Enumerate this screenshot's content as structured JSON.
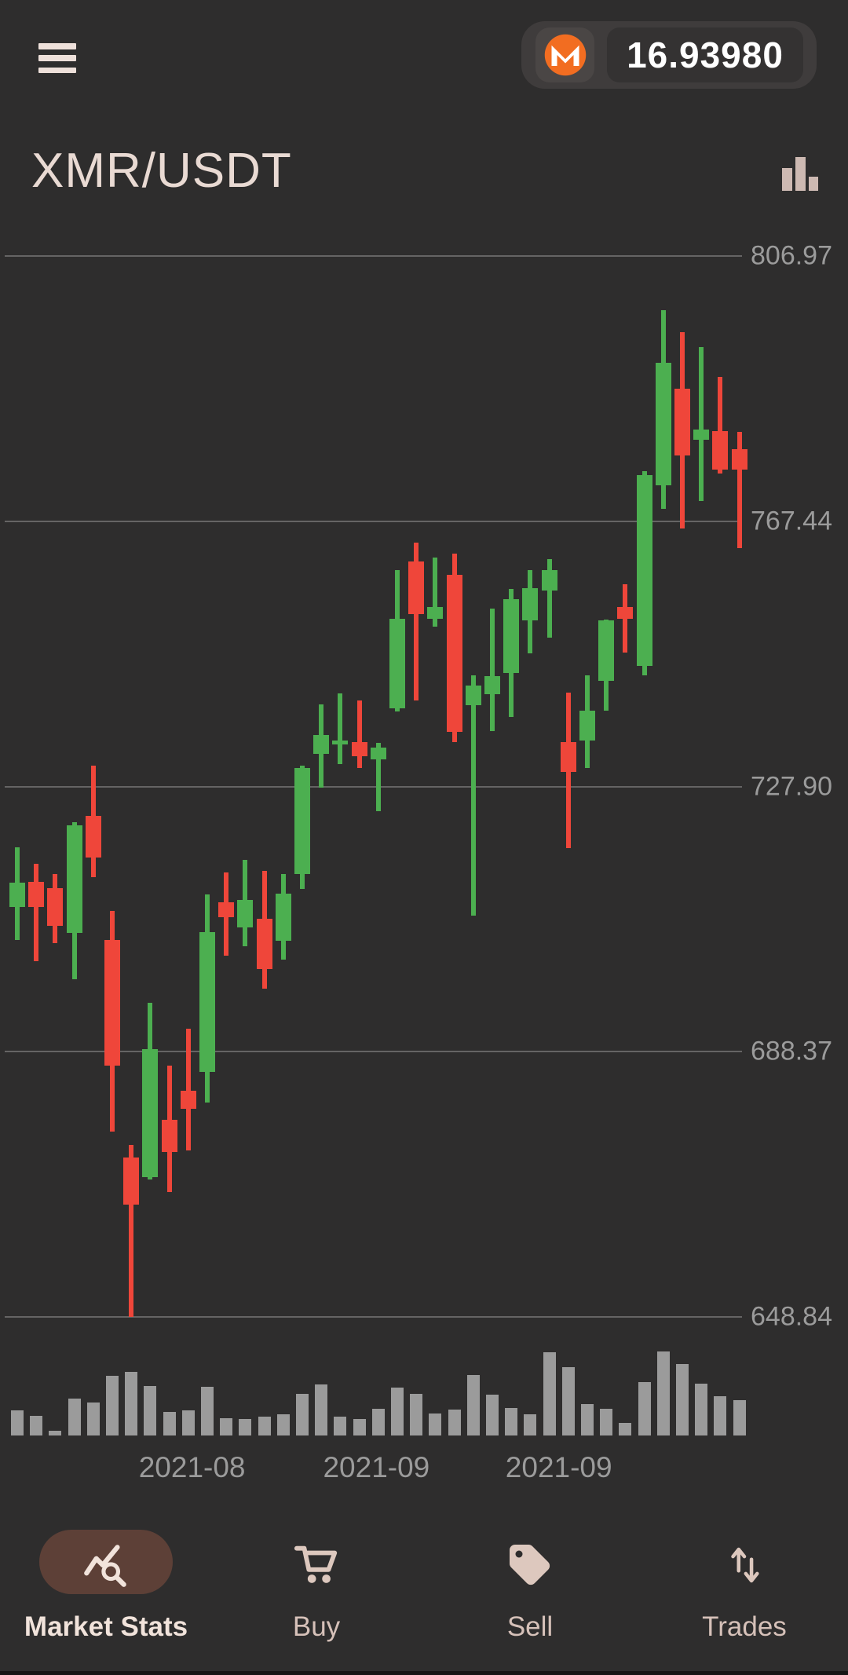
{
  "header": {
    "balance": "16.93980",
    "coin_icon": "monero",
    "monero_orange": "#f26d21"
  },
  "title": {
    "pair": "XMR/USDT"
  },
  "chart_data": {
    "type": "candlestick",
    "title": "XMR/USDT",
    "legend": "none",
    "grid": "horizontal",
    "colors": {
      "up": "#4caf50",
      "down": "#ef463a",
      "volume": "#9b9b9b",
      "grid": "#6f6e6e",
      "axis_text": "#9b9b9b"
    },
    "y_axis": {
      "side": "right",
      "labels": [
        "806.97",
        "767.44",
        "727.90",
        "688.37",
        "648.84"
      ],
      "range": [
        648.84,
        806.97
      ]
    },
    "x_axis": {
      "ticks": [
        {
          "label": "2021-08",
          "candle_index": 9.2
        },
        {
          "label": "2021-09",
          "candle_index": 18.9
        },
        {
          "label": "2021-09",
          "candle_index": 28.5
        }
      ]
    },
    "candles": [
      {
        "o": 709.9,
        "h": 718.8,
        "l": 705.0,
        "c": 713.6,
        "v": 0.3
      },
      {
        "o": 713.7,
        "h": 716.4,
        "l": 701.8,
        "c": 709.9,
        "v": 0.23
      },
      {
        "o": 712.8,
        "h": 714.9,
        "l": 704.5,
        "c": 707.1,
        "v": 0.06
      },
      {
        "o": 706.1,
        "h": 722.6,
        "l": 699.2,
        "c": 722.1,
        "v": 0.44
      },
      {
        "o": 723.5,
        "h": 731.0,
        "l": 714.4,
        "c": 717.3,
        "v": 0.39
      },
      {
        "o": 705.0,
        "h": 709.3,
        "l": 676.4,
        "c": 686.3,
        "v": 0.71
      },
      {
        "o": 672.6,
        "h": 674.5,
        "l": 648.8,
        "c": 665.6,
        "v": 0.76
      },
      {
        "o": 669.7,
        "h": 695.7,
        "l": 669.3,
        "c": 688.7,
        "v": 0.59
      },
      {
        "o": 678.2,
        "h": 686.3,
        "l": 667.5,
        "c": 673.4,
        "v": 0.28
      },
      {
        "o": 682.6,
        "h": 691.8,
        "l": 673.7,
        "c": 679.9,
        "v": 0.3
      },
      {
        "o": 685.3,
        "h": 711.8,
        "l": 680.8,
        "c": 706.2,
        "v": 0.58
      },
      {
        "o": 710.6,
        "h": 715.1,
        "l": 702.7,
        "c": 708.4,
        "v": 0.21
      },
      {
        "o": 706.9,
        "h": 716.9,
        "l": 704.1,
        "c": 711.0,
        "v": 0.2
      },
      {
        "o": 708.2,
        "h": 715.3,
        "l": 697.7,
        "c": 700.7,
        "v": 0.22
      },
      {
        "o": 704.9,
        "h": 714.8,
        "l": 702.1,
        "c": 711.9,
        "v": 0.25
      },
      {
        "o": 714.8,
        "h": 731.0,
        "l": 712.6,
        "c": 730.7,
        "v": 0.5
      },
      {
        "o": 732.7,
        "h": 740.1,
        "l": 727.7,
        "c": 735.6,
        "v": 0.61
      },
      {
        "o": 734.2,
        "h": 741.8,
        "l": 731.2,
        "c": 734.7,
        "v": 0.22
      },
      {
        "o": 734.5,
        "h": 740.7,
        "l": 730.6,
        "c": 732.4,
        "v": 0.2
      },
      {
        "o": 731.9,
        "h": 734.4,
        "l": 724.2,
        "c": 733.7,
        "v": 0.32
      },
      {
        "o": 739.5,
        "h": 760.1,
        "l": 739.1,
        "c": 752.9,
        "v": 0.57
      },
      {
        "o": 761.4,
        "h": 764.3,
        "l": 740.7,
        "c": 753.6,
        "v": 0.5
      },
      {
        "o": 752.9,
        "h": 762.0,
        "l": 751.7,
        "c": 754.7,
        "v": 0.26
      },
      {
        "o": 759.4,
        "h": 762.6,
        "l": 734.5,
        "c": 736.0,
        "v": 0.31
      },
      {
        "o": 740.0,
        "h": 744.5,
        "l": 708.7,
        "c": 742.9,
        "v": 0.72
      },
      {
        "o": 741.7,
        "h": 754.4,
        "l": 736.2,
        "c": 744.4,
        "v": 0.49
      },
      {
        "o": 744.8,
        "h": 757.3,
        "l": 738.3,
        "c": 755.8,
        "v": 0.33
      },
      {
        "o": 752.6,
        "h": 760.1,
        "l": 747.7,
        "c": 757.5,
        "v": 0.25
      },
      {
        "o": 757.1,
        "h": 761.8,
        "l": 750.1,
        "c": 760.1,
        "v": 0.99
      },
      {
        "o": 734.5,
        "h": 741.9,
        "l": 718.7,
        "c": 730.1,
        "v": 0.81
      },
      {
        "o": 734.7,
        "h": 744.5,
        "l": 730.6,
        "c": 739.2,
        "v": 0.37
      },
      {
        "o": 743.6,
        "h": 752.8,
        "l": 739.2,
        "c": 752.6,
        "v": 0.32
      },
      {
        "o": 754.7,
        "h": 758.1,
        "l": 747.9,
        "c": 752.9,
        "v": 0.15
      },
      {
        "o": 745.9,
        "h": 774.9,
        "l": 744.5,
        "c": 774.3,
        "v": 0.64
      },
      {
        "o": 772.8,
        "h": 798.9,
        "l": 769.3,
        "c": 791.0,
        "v": 1.0
      },
      {
        "o": 787.2,
        "h": 795.6,
        "l": 766.3,
        "c": 777.2,
        "v": 0.85
      },
      {
        "o": 779.6,
        "h": 793.4,
        "l": 770.5,
        "c": 781.1,
        "v": 0.62
      },
      {
        "o": 780.9,
        "h": 788.9,
        "l": 774.6,
        "c": 775.1,
        "v": 0.47
      },
      {
        "o": 778.2,
        "h": 780.7,
        "l": 763.4,
        "c": 775.1,
        "v": 0.42
      }
    ]
  },
  "nav": {
    "items": [
      {
        "label": "Market Stats",
        "icon": "market-stats-icon",
        "active": true
      },
      {
        "label": "Buy",
        "icon": "cart-icon",
        "active": false
      },
      {
        "label": "Sell",
        "icon": "tag-icon",
        "active": false
      },
      {
        "label": "Trades",
        "icon": "trades-icon",
        "active": false
      }
    ]
  }
}
